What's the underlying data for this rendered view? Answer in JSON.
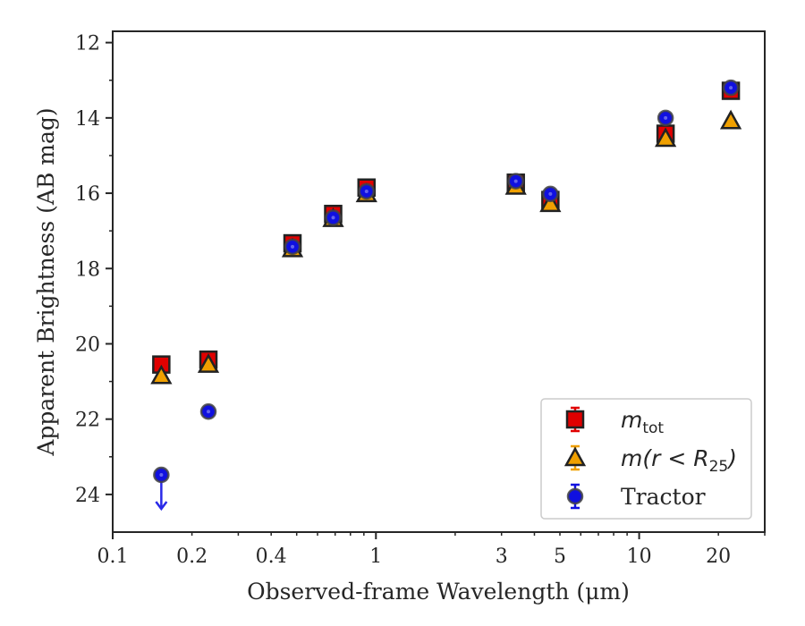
{
  "chart_data": {
    "type": "scatter",
    "title": "",
    "xlabel": "Observed-frame Wavelength (μm)",
    "ylabel": "Apparent Brightness (AB mag)",
    "xscale": "log",
    "xlim": [
      0.1,
      30
    ],
    "ylim": [
      25,
      11.7
    ],
    "y_inverted": true,
    "grid": false,
    "legend_position": "lower right",
    "xticks": [
      0.1,
      0.2,
      0.4,
      1,
      3,
      5,
      10,
      20
    ],
    "xtick_labels": [
      "0.1",
      "0.2",
      "0.4",
      "1",
      "3",
      "5",
      "10",
      "20"
    ],
    "yticks": [
      12,
      14,
      16,
      18,
      20,
      22,
      24
    ],
    "ytick_labels": [
      "12",
      "14",
      "16",
      "18",
      "20",
      "22",
      "24"
    ],
    "series": [
      {
        "name": "m_tot",
        "legend_label": {
          "base": "m",
          "sub": "tot"
        },
        "marker": "square",
        "color": "#e00000",
        "points": [
          {
            "x": 0.153,
            "y": 20.55
          },
          {
            "x": 0.231,
            "y": 20.42
          },
          {
            "x": 0.482,
            "y": 17.33
          },
          {
            "x": 0.688,
            "y": 16.55
          },
          {
            "x": 0.921,
            "y": 15.85
          },
          {
            "x": 3.4,
            "y": 15.72
          },
          {
            "x": 4.6,
            "y": 16.18
          },
          {
            "x": 12.6,
            "y": 14.42
          },
          {
            "x": 22.3,
            "y": 13.28
          }
        ]
      },
      {
        "name": "m(r < R25)",
        "legend_label": {
          "base": "m(r < R",
          "sub": "25",
          "tail": ")"
        },
        "marker": "triangle",
        "color": "#f0a000",
        "points": [
          {
            "x": 0.153,
            "y": 20.85
          },
          {
            "x": 0.231,
            "y": 20.55
          },
          {
            "x": 0.482,
            "y": 17.48
          },
          {
            "x": 0.688,
            "y": 16.68
          },
          {
            "x": 0.921,
            "y": 16.02
          },
          {
            "x": 3.4,
            "y": 15.82
          },
          {
            "x": 4.6,
            "y": 16.28
          },
          {
            "x": 12.6,
            "y": 14.55
          },
          {
            "x": 22.3,
            "y": 14.08
          }
        ]
      },
      {
        "name": "Tractor",
        "legend_label": {
          "base": "Tractor"
        },
        "marker": "circle",
        "color": "#1010e0",
        "points": [
          {
            "x": 0.153,
            "y": 23.48,
            "upper_limit": true
          },
          {
            "x": 0.231,
            "y": 21.8
          },
          {
            "x": 0.482,
            "y": 17.42
          },
          {
            "x": 0.688,
            "y": 16.65
          },
          {
            "x": 0.921,
            "y": 15.95
          },
          {
            "x": 3.4,
            "y": 15.68
          },
          {
            "x": 4.6,
            "y": 16.02
          },
          {
            "x": 12.6,
            "y": 14.0
          },
          {
            "x": 22.3,
            "y": 13.2
          }
        ]
      }
    ]
  }
}
